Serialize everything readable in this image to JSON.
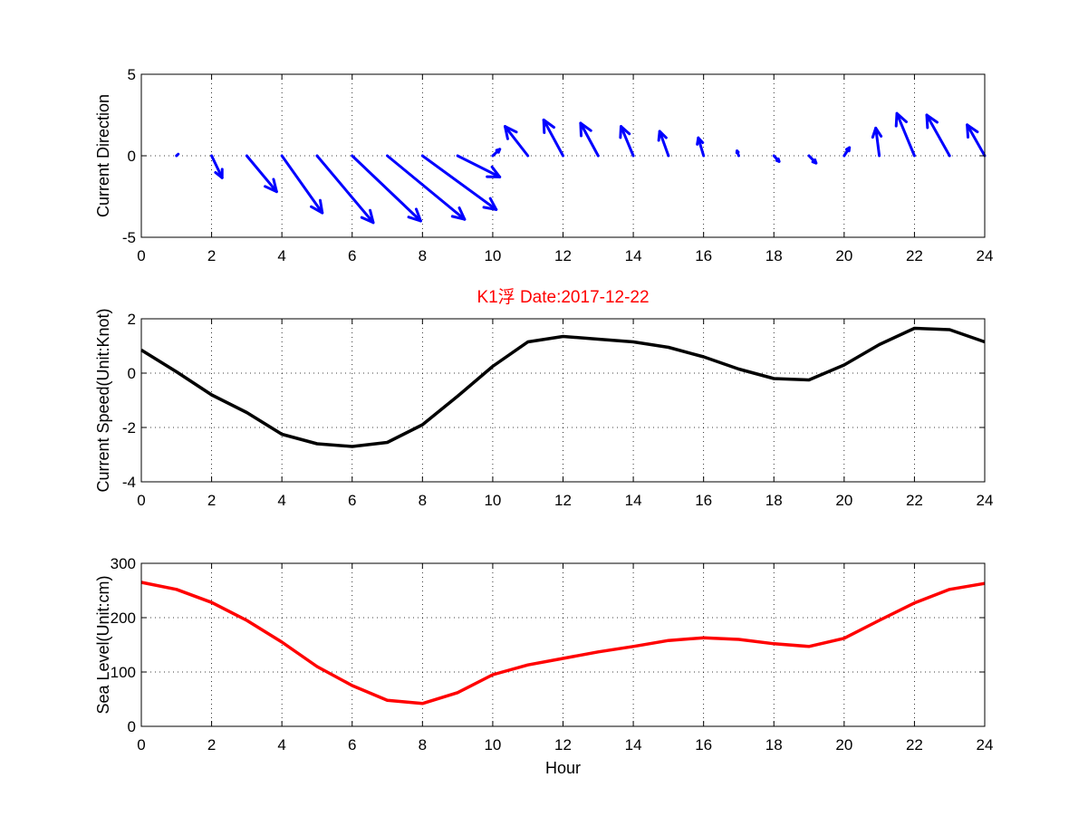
{
  "chart_data": [
    {
      "type": "quiver",
      "ylabel": "Current Direction",
      "xlim": [
        0,
        24
      ],
      "ylim": [
        -5,
        5
      ],
      "xticks": [
        "0",
        "2",
        "4",
        "6",
        "8",
        "10",
        "12",
        "14",
        "16",
        "18",
        "20",
        "22",
        "24"
      ],
      "yticks": [
        "-5",
        "0",
        "5"
      ],
      "grid": true,
      "color": "#0000ff",
      "x": [
        1,
        2,
        3,
        4,
        5,
        6,
        7,
        8,
        9,
        10,
        11,
        12,
        13,
        14,
        15,
        16,
        17,
        18,
        19,
        20,
        21,
        22,
        23,
        24
      ],
      "u": [
        0.05,
        0.3,
        0.85,
        1.15,
        1.6,
        1.95,
        2.2,
        2.1,
        1.2,
        0.2,
        -0.65,
        -0.55,
        -0.5,
        -0.35,
        -0.25,
        -0.15,
        -0.05,
        0.15,
        0.2,
        0.15,
        -0.1,
        -0.5,
        -0.65,
        -0.5
      ],
      "v": [
        0.1,
        -1.35,
        -2.2,
        -3.5,
        -4.1,
        -4.0,
        -3.9,
        -3.3,
        -1.3,
        0.4,
        1.8,
        2.2,
        2.0,
        1.8,
        1.5,
        1.1,
        0.3,
        -0.35,
        -0.45,
        0.5,
        1.7,
        2.6,
        2.5,
        1.9
      ]
    },
    {
      "type": "line",
      "title": "K1浮   Date:2017-12-22",
      "title_color": "#ff0000",
      "ylabel": "Current Speed(Unit:Knot)",
      "xlim": [
        0,
        24
      ],
      "ylim": [
        -4,
        2
      ],
      "xticks": [
        "0",
        "2",
        "4",
        "6",
        "8",
        "10",
        "12",
        "14",
        "16",
        "18",
        "20",
        "22",
        "24"
      ],
      "yticks": [
        "-4",
        "-2",
        "0",
        "2"
      ],
      "grid": true,
      "color": "#000000",
      "x": [
        0,
        1,
        2,
        3,
        4,
        5,
        6,
        7,
        8,
        9,
        10,
        11,
        12,
        13,
        14,
        15,
        16,
        17,
        18,
        19,
        20,
        21,
        22,
        23,
        24
      ],
      "y": [
        0.85,
        0.05,
        -0.8,
        -1.45,
        -2.25,
        -2.6,
        -2.7,
        -2.55,
        -1.9,
        -0.85,
        0.25,
        1.15,
        1.35,
        1.25,
        1.15,
        0.95,
        0.6,
        0.15,
        -0.2,
        -0.25,
        0.3,
        1.05,
        1.65,
        1.6,
        1.15
      ]
    },
    {
      "type": "line",
      "ylabel": "Sea Level(Unit:cm)",
      "xlabel": "Hour",
      "xlim": [
        0,
        24
      ],
      "ylim": [
        0,
        300
      ],
      "xticks": [
        "0",
        "2",
        "4",
        "6",
        "8",
        "10",
        "12",
        "14",
        "16",
        "18",
        "20",
        "22",
        "24"
      ],
      "yticks": [
        "0",
        "100",
        "200",
        "300"
      ],
      "grid": true,
      "color": "#ff0000",
      "x": [
        0,
        1,
        2,
        3,
        4,
        5,
        6,
        7,
        8,
        9,
        10,
        11,
        12,
        13,
        14,
        15,
        16,
        17,
        18,
        19,
        20,
        21,
        22,
        23,
        24
      ],
      "y": [
        265,
        252,
        228,
        195,
        155,
        110,
        75,
        48,
        42,
        62,
        95,
        113,
        125,
        137,
        147,
        158,
        163,
        160,
        152,
        147,
        162,
        195,
        227,
        252,
        263
      ]
    }
  ]
}
